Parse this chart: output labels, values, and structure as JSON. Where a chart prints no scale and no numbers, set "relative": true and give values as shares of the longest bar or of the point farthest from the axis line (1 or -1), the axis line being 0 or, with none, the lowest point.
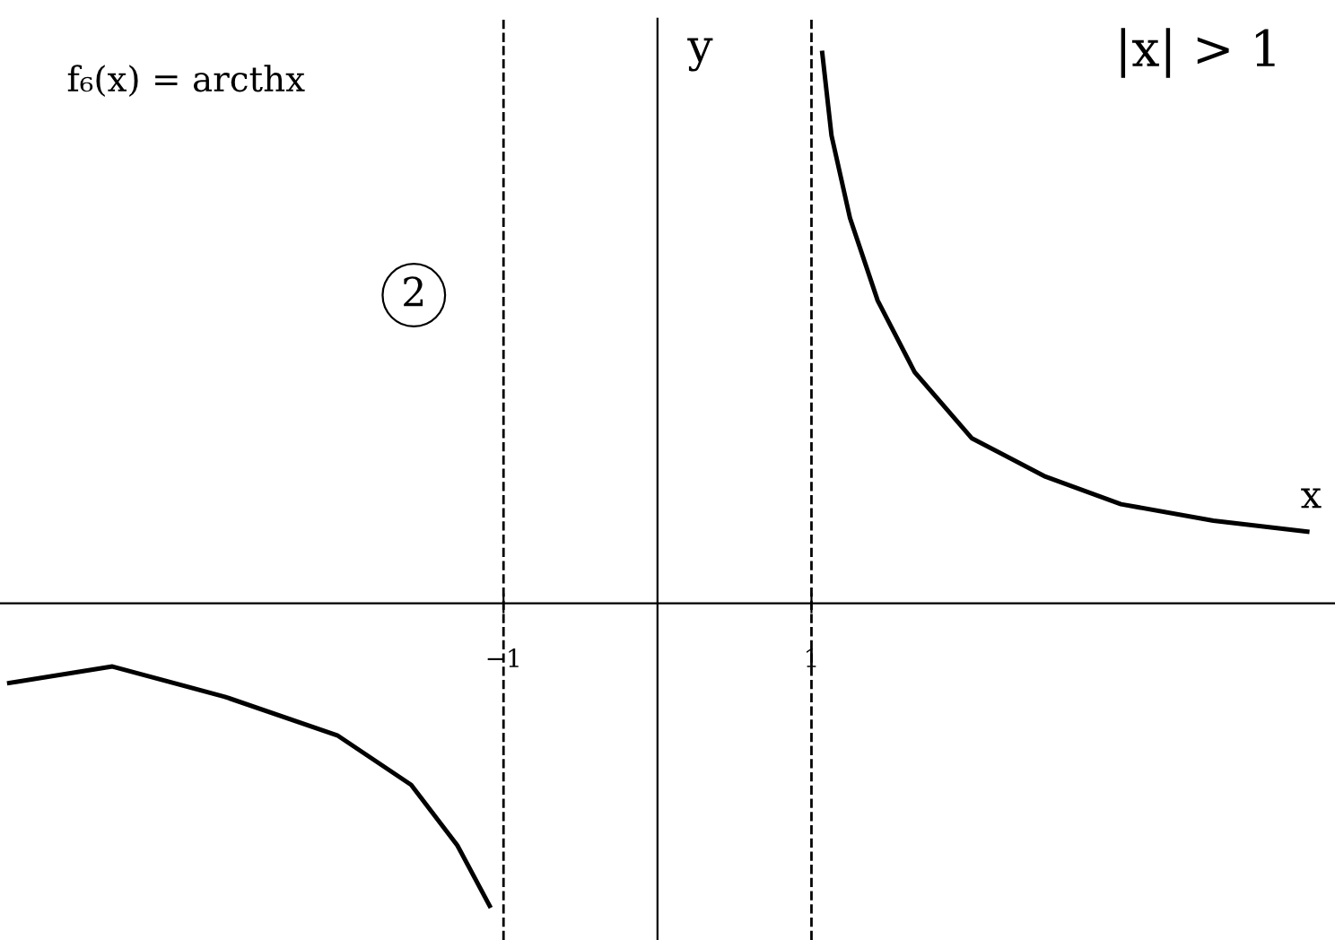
{
  "chart_data": {
    "type": "line",
    "title": "f₆(x) = arcthx",
    "xlabel": "x",
    "ylabel": "y",
    "relative": true,
    "annotations": [
      "|x| > 1",
      "2"
    ],
    "xlim": [
      -4.27,
      4.4
    ],
    "xticks": [
      {
        "value": -1,
        "label": "−1"
      },
      {
        "value": 1,
        "label": "1"
      }
    ],
    "series": [
      {
        "color": "#000000",
        "x": [
          1.07,
          1.13,
          1.25,
          1.43,
          1.67,
          2.04,
          2.52,
          3.01,
          3.61,
          4.22
        ],
        "values": [
          1.0,
          0.85,
          0.7,
          0.55,
          0.42,
          0.3,
          0.23,
          0.18,
          0.15,
          0.13
        ]
      },
      {
        "color": "#000000",
        "x": [
          -4.21,
          -3.54,
          -2.81,
          -2.08,
          -1.6,
          -1.3,
          -1.09
        ],
        "values": [
          -0.145,
          -0.115,
          -0.17,
          -0.24,
          -0.33,
          -0.44,
          -0.55
        ]
      }
    ],
    "ref_lines": [
      {
        "axis": "x",
        "value": -1,
        "color": "#000000",
        "line_style": "dashed"
      },
      {
        "axis": "x",
        "value": 1,
        "color": "#000000",
        "line_style": "dashed"
      }
    ],
    "grid": false,
    "legend": false,
    "marker": "none",
    "line_style": "solid"
  }
}
